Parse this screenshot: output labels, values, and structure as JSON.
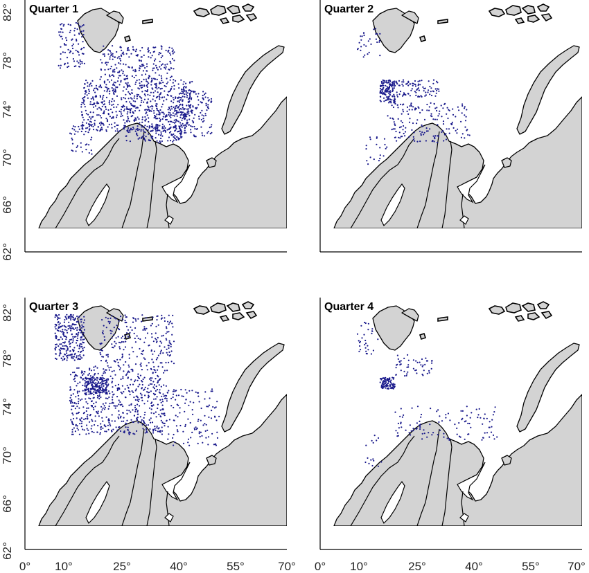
{
  "figure": {
    "panels": [
      {
        "title": "Quarter 1"
      },
      {
        "title": "Quarter 2"
      },
      {
        "title": "Quarter 3"
      },
      {
        "title": "Quarter 4"
      }
    ],
    "x_tick_labels": [
      "0°",
      "10°",
      "25°",
      "40°",
      "55°",
      "70°"
    ],
    "y_tick_labels": [
      "62°",
      "66°",
      "70°",
      "74°",
      "78°",
      "82°"
    ]
  },
  "colors": {
    "land": "#d3d3d3",
    "coastline": "#000000",
    "points": "#1a1a8c"
  },
  "chart_data": {
    "type": "scatter",
    "x": {
      "range": [
        0,
        70
      ],
      "unit": "degrees longitude",
      "ticks": [
        0,
        10,
        25,
        40,
        55,
        70
      ]
    },
    "y": {
      "range": [
        62,
        82
      ],
      "unit": "degrees latitude",
      "ticks": [
        62,
        66,
        70,
        74,
        78,
        82
      ]
    },
    "panels": [
      {
        "title": "Quarter 1",
        "clusters": [
          {
            "lon": [
              15,
              45
            ],
            "lat": [
              70.5,
              75
            ],
            "weight": 700
          },
          {
            "lon": [
              20,
              40
            ],
            "lat": [
              75,
              78
            ],
            "weight": 220
          },
          {
            "lon": [
              40,
              50
            ],
            "lat": [
              70,
              74
            ],
            "weight": 150
          },
          {
            "lon": [
              9,
              16
            ],
            "lat": [
              76,
              80
            ],
            "weight": 90
          },
          {
            "lon": [
              12,
              18
            ],
            "lat": [
              68.5,
              71
            ],
            "weight": 40
          },
          {
            "lon": [
              26,
              42
            ],
            "lat": [
              69.5,
              71
            ],
            "weight": 110
          }
        ]
      },
      {
        "title": "Quarter 2",
        "clusters": [
          {
            "lon": [
              16,
              20
            ],
            "lat": [
              73,
              75
            ],
            "weight": 140
          },
          {
            "lon": [
              20,
              32
            ],
            "lat": [
              73.5,
              75
            ],
            "weight": 90
          },
          {
            "lon": [
              18,
              40
            ],
            "lat": [
              69.5,
              73
            ],
            "weight": 170
          },
          {
            "lon": [
              10,
              16
            ],
            "lat": [
              77,
              79.5
            ],
            "weight": 30
          },
          {
            "lon": [
              12,
              18
            ],
            "lat": [
              67.5,
              70
            ],
            "weight": 20
          }
        ]
      },
      {
        "title": "Quarter 3",
        "clusters": [
          {
            "lon": [
              12,
              38
            ],
            "lat": [
              70,
              76
            ],
            "weight": 600
          },
          {
            "lon": [
              8,
              16
            ],
            "lat": [
              76.5,
              80.5
            ],
            "weight": 260
          },
          {
            "lon": [
              16,
              22
            ],
            "lat": [
              73.5,
              75
            ],
            "weight": 160
          },
          {
            "lon": [
              20,
              40
            ],
            "lat": [
              76,
              80.5
            ],
            "weight": 220
          },
          {
            "lon": [
              38,
              52
            ],
            "lat": [
              69,
              74
            ],
            "weight": 120
          }
        ]
      },
      {
        "title": "Quarter 4",
        "clusters": [
          {
            "lon": [
              16,
              20
            ],
            "lat": [
              74,
              75
            ],
            "weight": 90
          },
          {
            "lon": [
              20,
              30
            ],
            "lat": [
              75,
              77
            ],
            "weight": 50
          },
          {
            "lon": [
              10,
              16
            ],
            "lat": [
              77,
              80
            ],
            "weight": 30
          },
          {
            "lon": [
              20,
              48
            ],
            "lat": [
              69.5,
              72.5
            ],
            "weight": 110
          },
          {
            "lon": [
              12,
              18
            ],
            "lat": [
              67,
              70
            ],
            "weight": 15
          }
        ]
      }
    ]
  }
}
